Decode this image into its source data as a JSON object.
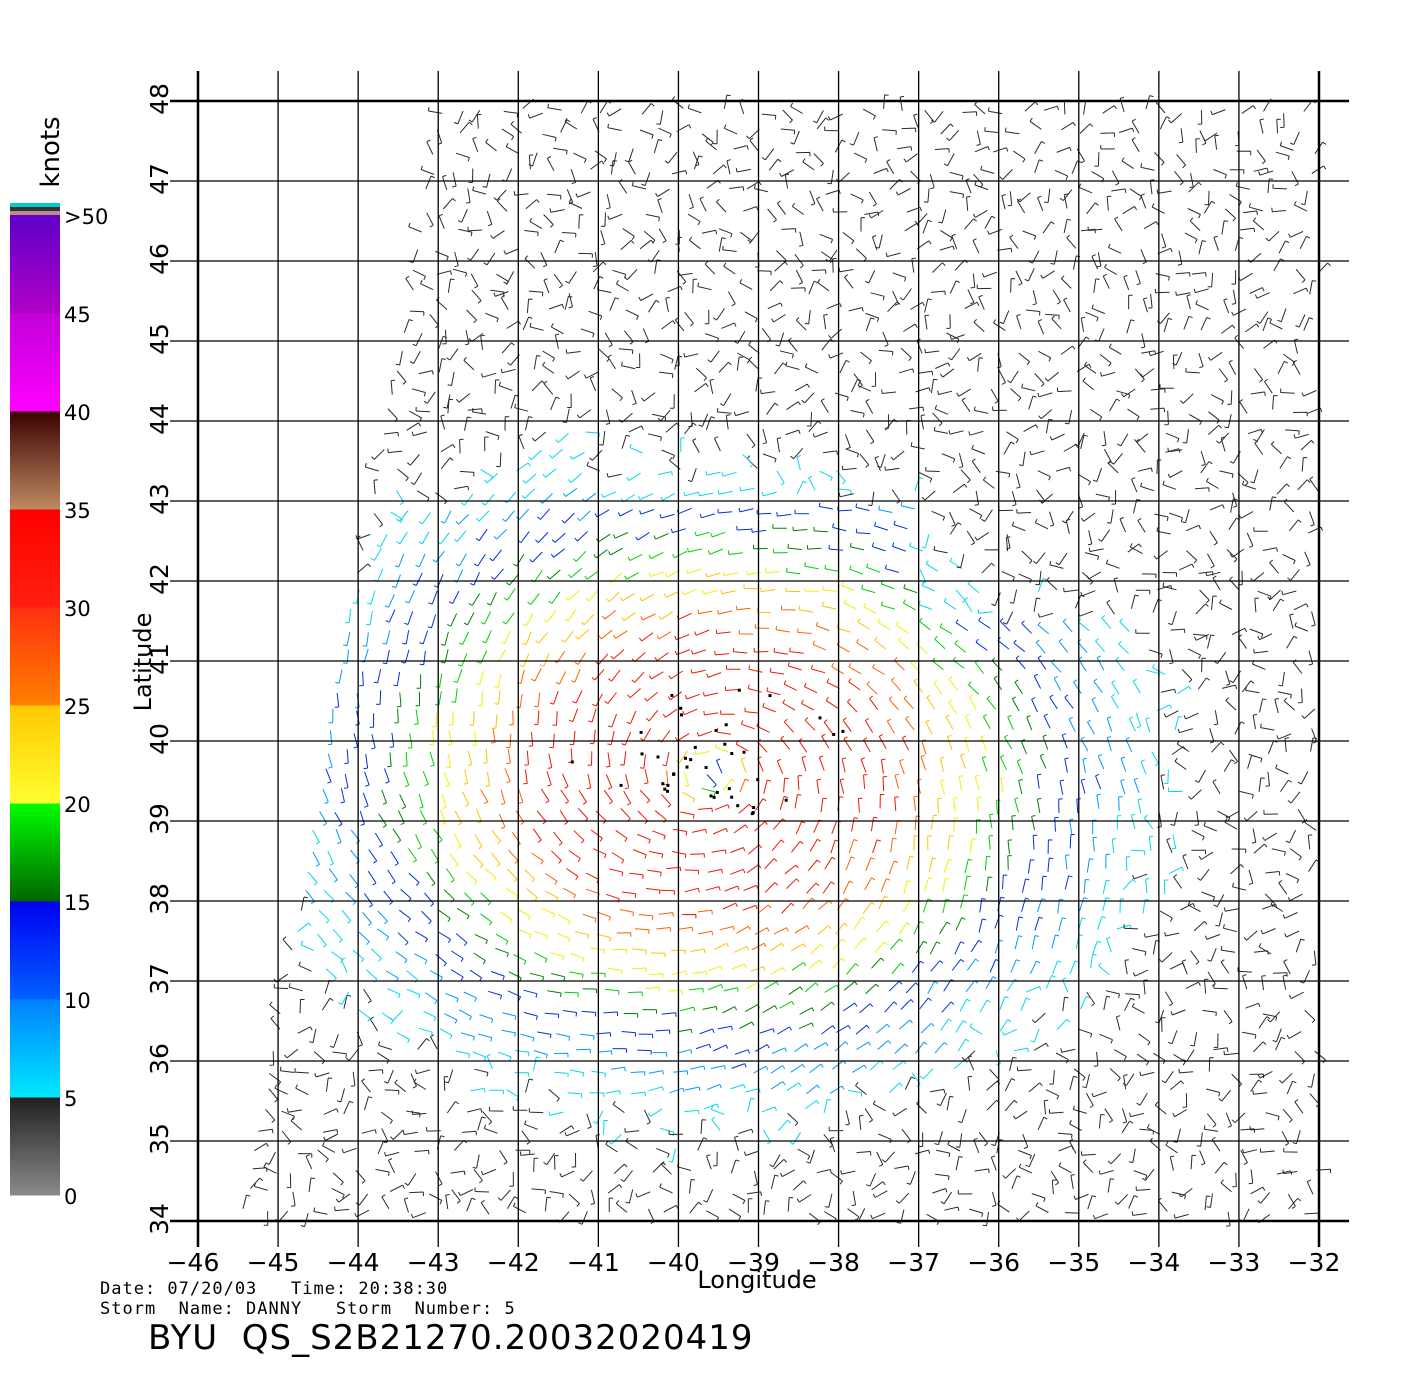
{
  "chart_data": {
    "type": "wind-vector-map",
    "xlabel": "Longitude",
    "ylabel": "Latitude",
    "xlim": [
      -46,
      -32
    ],
    "ylim": [
      34,
      48
    ],
    "x_ticks": [
      "−46",
      "−45",
      "−44",
      "−43",
      "−42",
      "−41",
      "−40",
      "−39",
      "−38",
      "−37",
      "−36",
      "−35",
      "−34",
      "−33",
      "−32"
    ],
    "y_ticks": [
      "34",
      "35",
      "36",
      "37",
      "38",
      "39",
      "40",
      "41",
      "42",
      "43",
      "44",
      "45",
      "46",
      "47",
      "48"
    ],
    "grid": true,
    "swath": {
      "west_edge": [
        [
          -45.5,
          34
        ],
        [
          -43,
          48
        ]
      ],
      "east_edge": [
        [
          -32,
          34
        ],
        [
          -32,
          48
        ]
      ]
    },
    "storm_center": {
      "lon": -39.6,
      "lat": 39.6
    },
    "wind_speed_max_knots_approx": 32,
    "colorbar": {
      "unit": "knots",
      "over_label": ">50",
      "labels": [
        "0",
        "5",
        "10",
        "15",
        "20",
        "25",
        "30",
        "35",
        "40",
        "45",
        ">50"
      ],
      "bands": [
        {
          "range": [
            0,
            5
          ],
          "colors": [
            "#8a8a8a",
            "#202020"
          ]
        },
        {
          "range": [
            5,
            10
          ],
          "colors": [
            "#00e8ff",
            "#0080ff"
          ]
        },
        {
          "range": [
            10,
            15
          ],
          "colors": [
            "#0060ff",
            "#0000f0"
          ]
        },
        {
          "range": [
            15,
            20
          ],
          "colors": [
            "#006400",
            "#00ff00"
          ]
        },
        {
          "range": [
            20,
            25
          ],
          "colors": [
            "#ffff30",
            "#ffc800"
          ]
        },
        {
          "range": [
            25,
            30
          ],
          "colors": [
            "#ff8000",
            "#ff3010"
          ]
        },
        {
          "range": [
            30,
            35
          ],
          "colors": [
            "#ff2010",
            "#ff0000"
          ]
        },
        {
          "range": [
            35,
            40
          ],
          "colors": [
            "#c08a60",
            "#3a0000"
          ]
        },
        {
          "range": [
            40,
            45
          ],
          "colors": [
            "#ff00ff",
            "#c000d8"
          ]
        },
        {
          "range": [
            45,
            50
          ],
          "colors": [
            "#b000c8",
            "#6000c8"
          ]
        }
      ],
      "top_stripes": [
        "#ffffff",
        "#00cccc",
        "#333333",
        "#c08a8a"
      ]
    }
  },
  "footer": {
    "line1": "Date: 07/20/03   Time: 20:38:30",
    "line2": "Storm  Name: DANNY   Storm  Number: 5",
    "product_id": "BYU  QS_S2B21270.20032020419"
  }
}
